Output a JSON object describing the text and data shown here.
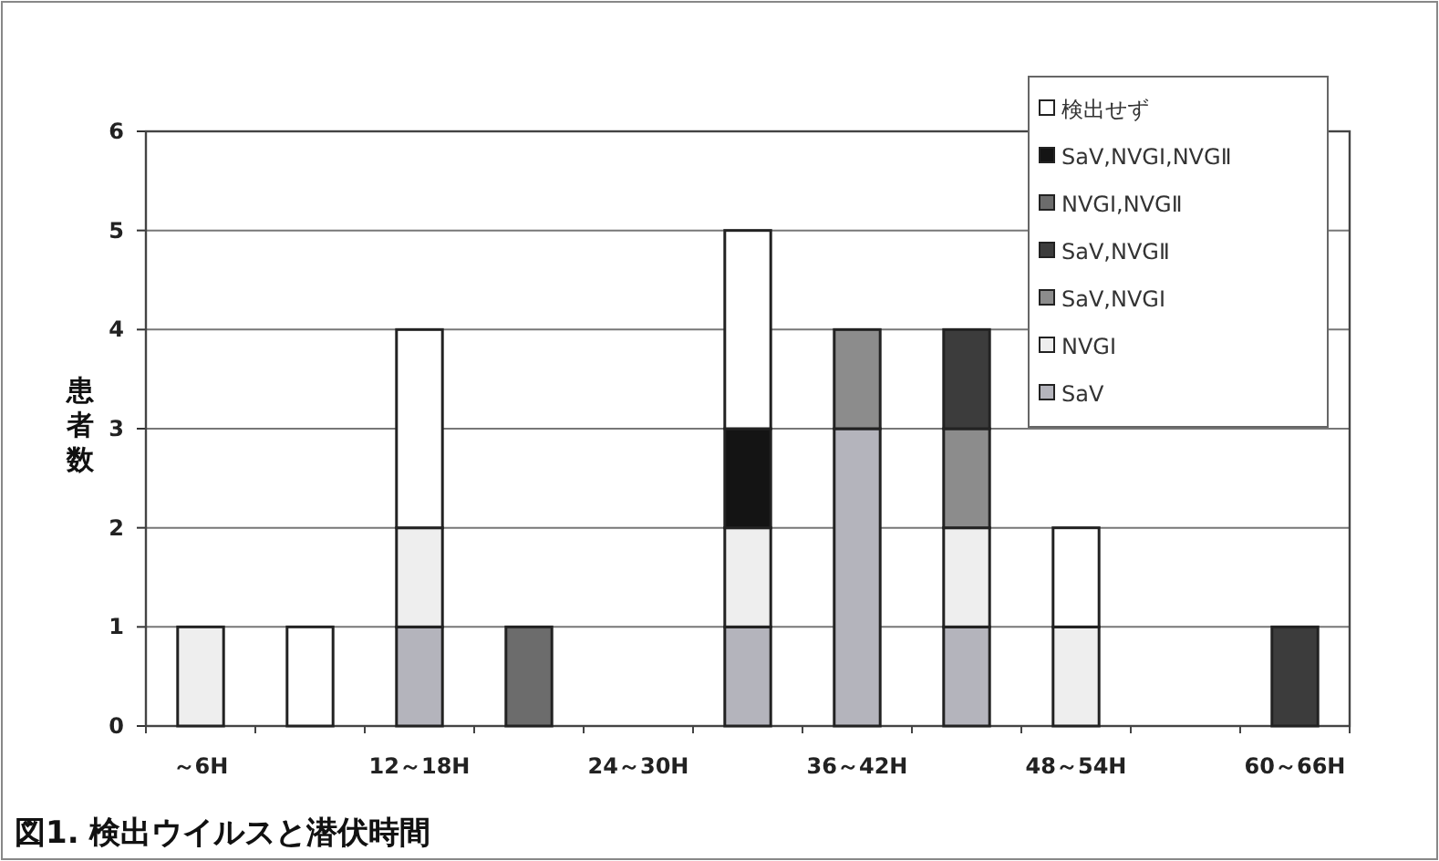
{
  "chart_data": {
    "type": "bar",
    "stacked": true,
    "title": "図1. 検出ウイルスと潜伏時間",
    "ylabel": "患者数",
    "categories": [
      "～6H",
      null,
      "12～18H",
      null,
      "24～30H",
      null,
      "36～42H",
      null,
      "48～54H",
      null,
      "60～66H"
    ],
    "series": [
      {
        "name": "SaV",
        "color": "#b4b4bc",
        "values": [
          0,
          0,
          1,
          0,
          0,
          1,
          3,
          1,
          0,
          0,
          0
        ]
      },
      {
        "name": "NVGⅠ",
        "color": "#eeeeee",
        "values": [
          1,
          0,
          1,
          0,
          0,
          1,
          0,
          1,
          1,
          0,
          0
        ]
      },
      {
        "name": "SaV,NVGⅠ",
        "color": "#8c8c8c",
        "values": [
          0,
          0,
          0,
          0,
          0,
          0,
          1,
          1,
          0,
          0,
          0
        ]
      },
      {
        "name": "SaV,NVGⅡ",
        "color": "#3c3c3c",
        "values": [
          0,
          0,
          0,
          0,
          0,
          0,
          0,
          1,
          0,
          0,
          1
        ]
      },
      {
        "name": "NVGⅠ,NVGⅡ",
        "color": "#6c6c6c",
        "values": [
          0,
          0,
          0,
          1,
          0,
          0,
          0,
          0,
          0,
          0,
          0
        ]
      },
      {
        "name": "SaV,NVGⅠ,NVGⅡ",
        "color": "#141414",
        "values": [
          0,
          0,
          0,
          0,
          0,
          1,
          0,
          0,
          0,
          0,
          0
        ]
      },
      {
        "name": "検出せず",
        "color": "#ffffff",
        "values": [
          0,
          1,
          2,
          0,
          0,
          2,
          0,
          0,
          1,
          0,
          0
        ]
      }
    ],
    "ylim": [
      0,
      6
    ],
    "yticks": [
      0,
      1,
      2,
      3,
      4,
      5,
      6
    ],
    "grid": "y",
    "legend": "top right"
  }
}
